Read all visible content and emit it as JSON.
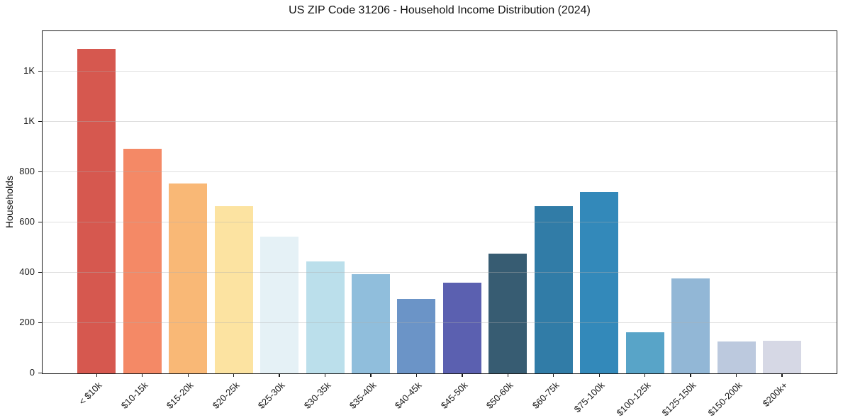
{
  "figure": {
    "title": "US ZIP Code 31206 - Household Income Distribution (2024)"
  },
  "chart_data": {
    "type": "bar",
    "title": "US ZIP Code 31206 - Household Income Distribution (2024)",
    "xlabel": "",
    "ylabel": "Households",
    "categories": [
      "< $10k",
      "$10-15k",
      "$15-20k",
      "$20-25k",
      "$25-30k",
      "$30-35k",
      "$35-40k",
      "$40-45k",
      "$45-50k",
      "$50-60k",
      "$60-75k",
      "$75-100k",
      "$100-125k",
      "$125-150k",
      "$150-200k",
      "$200k+"
    ],
    "values": [
      1290,
      892,
      755,
      666,
      545,
      444,
      395,
      295,
      360,
      475,
      666,
      722,
      163,
      377,
      126,
      131
    ],
    "bar_colors": [
      "#d6584f",
      "#f48966",
      "#f9b876",
      "#fce3a1",
      "#e5f1f6",
      "#bbdfeb",
      "#90bedc",
      "#6b94c7",
      "#5b60b0",
      "#375c72",
      "#317ca7",
      "#3389ba",
      "#58a4c8",
      "#92b7d6",
      "#bcc9de",
      "#d6d8e5"
    ],
    "ylim": [
      0,
      1360
    ],
    "yticks": [
      {
        "value": 0,
        "label": "0"
      },
      {
        "value": 200,
        "label": "200"
      },
      {
        "value": 400,
        "label": "400"
      },
      {
        "value": 600,
        "label": "600"
      },
      {
        "value": 800,
        "label": "800"
      },
      {
        "value": 1000,
        "label": "1K"
      },
      {
        "value": 1200,
        "label": "1K"
      }
    ],
    "grid": "horizontal gridlines drawn above bars",
    "legend": "none"
  }
}
